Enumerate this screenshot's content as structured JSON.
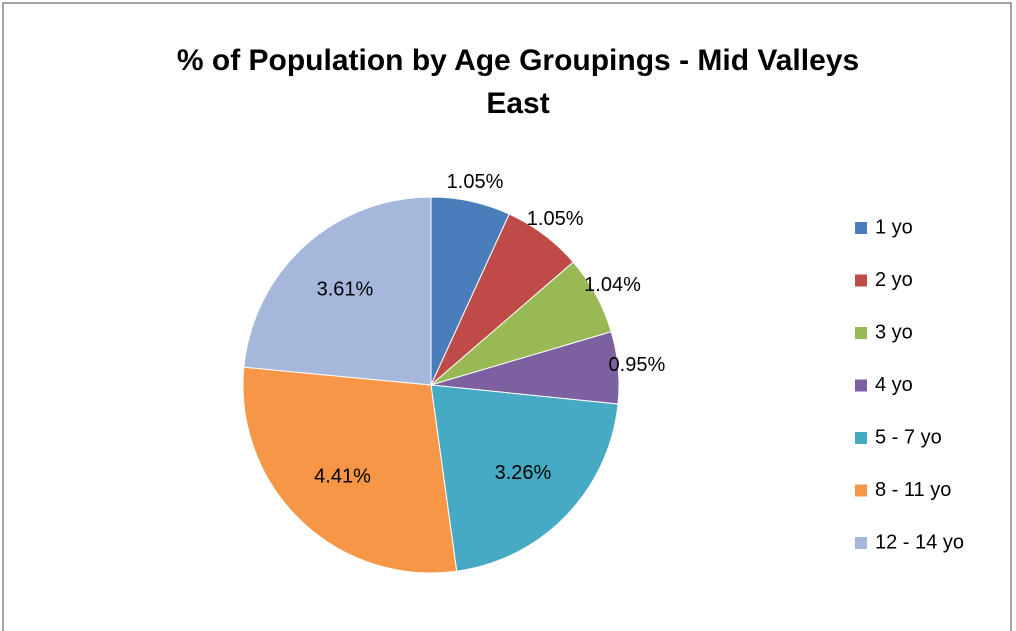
{
  "chart_data": {
    "type": "pie",
    "title": [
      "% of Population by Age Groupings - Mid Valleys",
      "East"
    ],
    "categories": [
      "1 yo",
      "2 yo",
      "3 yo",
      "4 yo",
      "5 - 7 yo",
      "8 - 11 yo",
      "12 - 14 yo"
    ],
    "values": [
      1.05,
      1.05,
      1.04,
      0.95,
      3.26,
      4.41,
      3.61
    ],
    "value_labels": [
      "1.05%",
      "1.05%",
      "1.04%",
      "0.95%",
      "3.26%",
      "4.41%",
      "3.61%"
    ],
    "colors": [
      "#4a7ebb",
      "#be4b48",
      "#98b954",
      "#7d60a0",
      "#46aac5",
      "#f79646",
      "#a5b8dc"
    ],
    "legend": "right"
  }
}
